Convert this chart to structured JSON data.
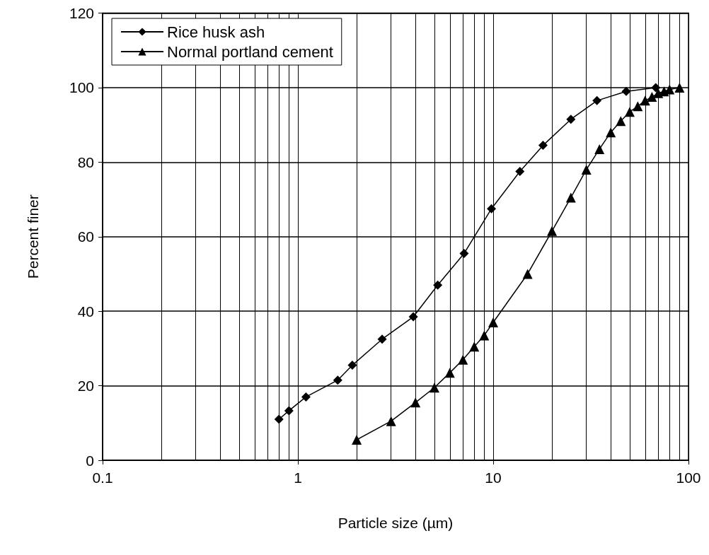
{
  "chart_data": {
    "type": "line",
    "xlabel": "Particle size (µm)",
    "ylabel": "Percent finer",
    "log": "x",
    "xlim": [
      0.1,
      100
    ],
    "xticks": [
      0.1,
      1,
      10,
      100
    ],
    "ylim": [
      0,
      120
    ],
    "yticks": [
      0,
      20,
      40,
      60,
      80,
      100,
      120
    ],
    "grid": true,
    "legend": "top left",
    "series": [
      {
        "name": "Rice husk ash",
        "color": "#000000",
        "marker": "diamond",
        "x": [
          0.8,
          0.9,
          1.1,
          1.6,
          1.9,
          2.7,
          3.9,
          5.2,
          7.1,
          9.8,
          13.7,
          18,
          25,
          34,
          48,
          68
        ],
        "values": [
          11,
          13.3,
          17,
          21.5,
          25.5,
          32.5,
          38.5,
          47,
          55.5,
          67.5,
          77.5,
          84.5,
          91.5,
          96.5,
          99,
          100
        ]
      },
      {
        "name": "Normal portland cement",
        "color": "#000000",
        "marker": "triangle",
        "x": [
          2,
          3,
          4,
          5,
          6,
          7,
          8,
          9,
          10,
          15,
          20,
          25,
          30,
          35,
          40,
          45,
          50,
          55,
          60,
          65,
          70,
          75,
          80,
          90
        ],
        "values": [
          5.5,
          10.5,
          15.5,
          19.5,
          23.5,
          27,
          30.5,
          33.5,
          37,
          50,
          61.5,
          70.5,
          78,
          83.5,
          88,
          91,
          93.5,
          95,
          96.5,
          97.5,
          98.5,
          99,
          99.5,
          100
        ]
      }
    ]
  }
}
